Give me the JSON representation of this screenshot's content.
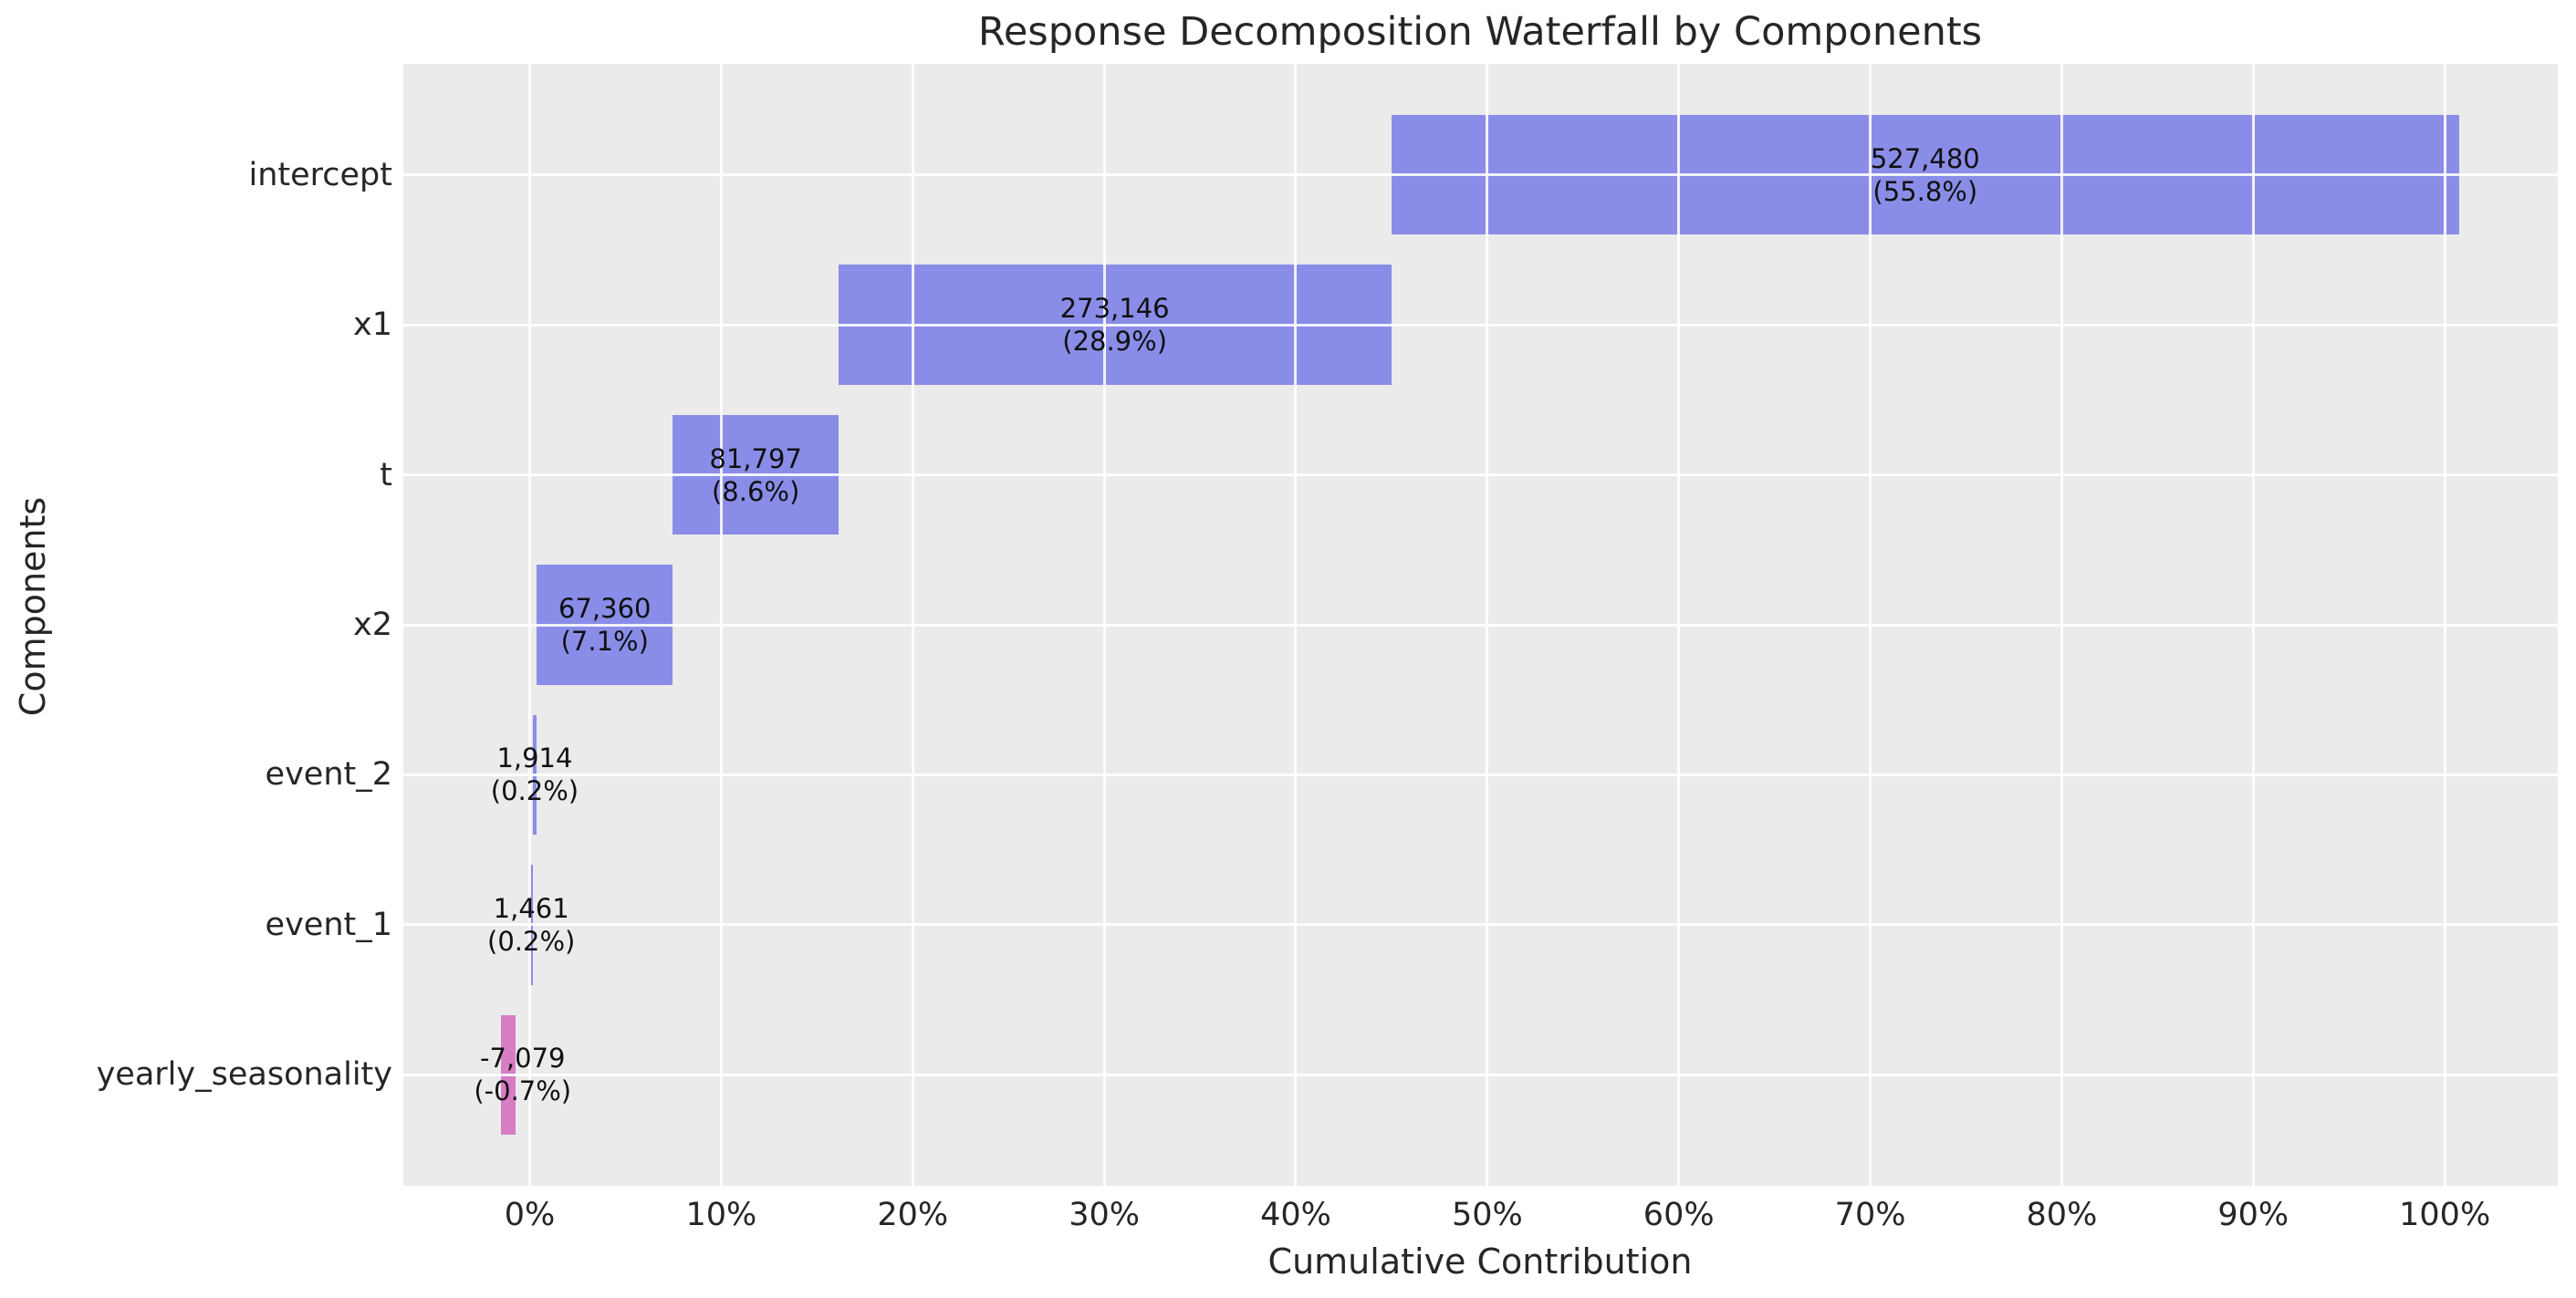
{
  "chart_data": {
    "type": "bar",
    "subtype": "waterfall",
    "orientation": "horizontal",
    "title": "Response Decomposition Waterfall by Components",
    "xlabel": "Cumulative Contribution",
    "ylabel": "Components",
    "categories": [
      "intercept",
      "x1",
      "t",
      "x2",
      "event_2",
      "event_1",
      "yearly_seasonality"
    ],
    "values": [
      527480,
      273146,
      81797,
      67360,
      1914,
      1461,
      -7079
    ],
    "value_labels": [
      "527,480",
      "273,146",
      "81,797",
      "67,360",
      "1,914",
      "1,461",
      "-7,079"
    ],
    "pct_labels": [
      "(55.8%)",
      "(28.9%)",
      "(8.6%)",
      "(7.1%)",
      "(0.2%)",
      "(0.2%)",
      "(-0.7%)"
    ],
    "percent_of_total": [
      55.8,
      28.9,
      8.6,
      7.1,
      0.2,
      0.2,
      -0.7
    ],
    "bar_spans_pct": [
      [
        44.99,
        100.75
      ],
      [
        16.12,
        44.99
      ],
      [
        7.48,
        16.12
      ],
      [
        0.36,
        7.48
      ],
      [
        0.16,
        0.36
      ],
      [
        0.0,
        0.16
      ],
      [
        -1.5,
        -0.75
      ]
    ],
    "label_x_pct": [
      72.87,
      30.55,
      11.8,
      3.92,
      0.26,
      0.08,
      -0.37
    ],
    "x_ticks": [
      {
        "value": 0,
        "label": "0%"
      },
      {
        "value": 10,
        "label": "10%"
      },
      {
        "value": 20,
        "label": "20%"
      },
      {
        "value": 30,
        "label": "30%"
      },
      {
        "value": 40,
        "label": "40%"
      },
      {
        "value": 50,
        "label": "50%"
      },
      {
        "value": 60,
        "label": "60%"
      },
      {
        "value": 70,
        "label": "70%"
      },
      {
        "value": 80,
        "label": "80%"
      },
      {
        "value": 90,
        "label": "90%"
      },
      {
        "value": 100,
        "label": "100%"
      }
    ],
    "xlim": [
      -6.6,
      105.9
    ],
    "ylim": [
      -0.74,
      6.74
    ],
    "bar_height_frac": 0.8,
    "grid": "on",
    "legend": "none",
    "colors": {
      "positive_bar": "#8a8de8",
      "negative_bar": "#d77dc5",
      "plot_background": "#ebebeb",
      "gridline": "#ffffff",
      "text": "#262626",
      "bar_label_text": "#101010"
    }
  }
}
